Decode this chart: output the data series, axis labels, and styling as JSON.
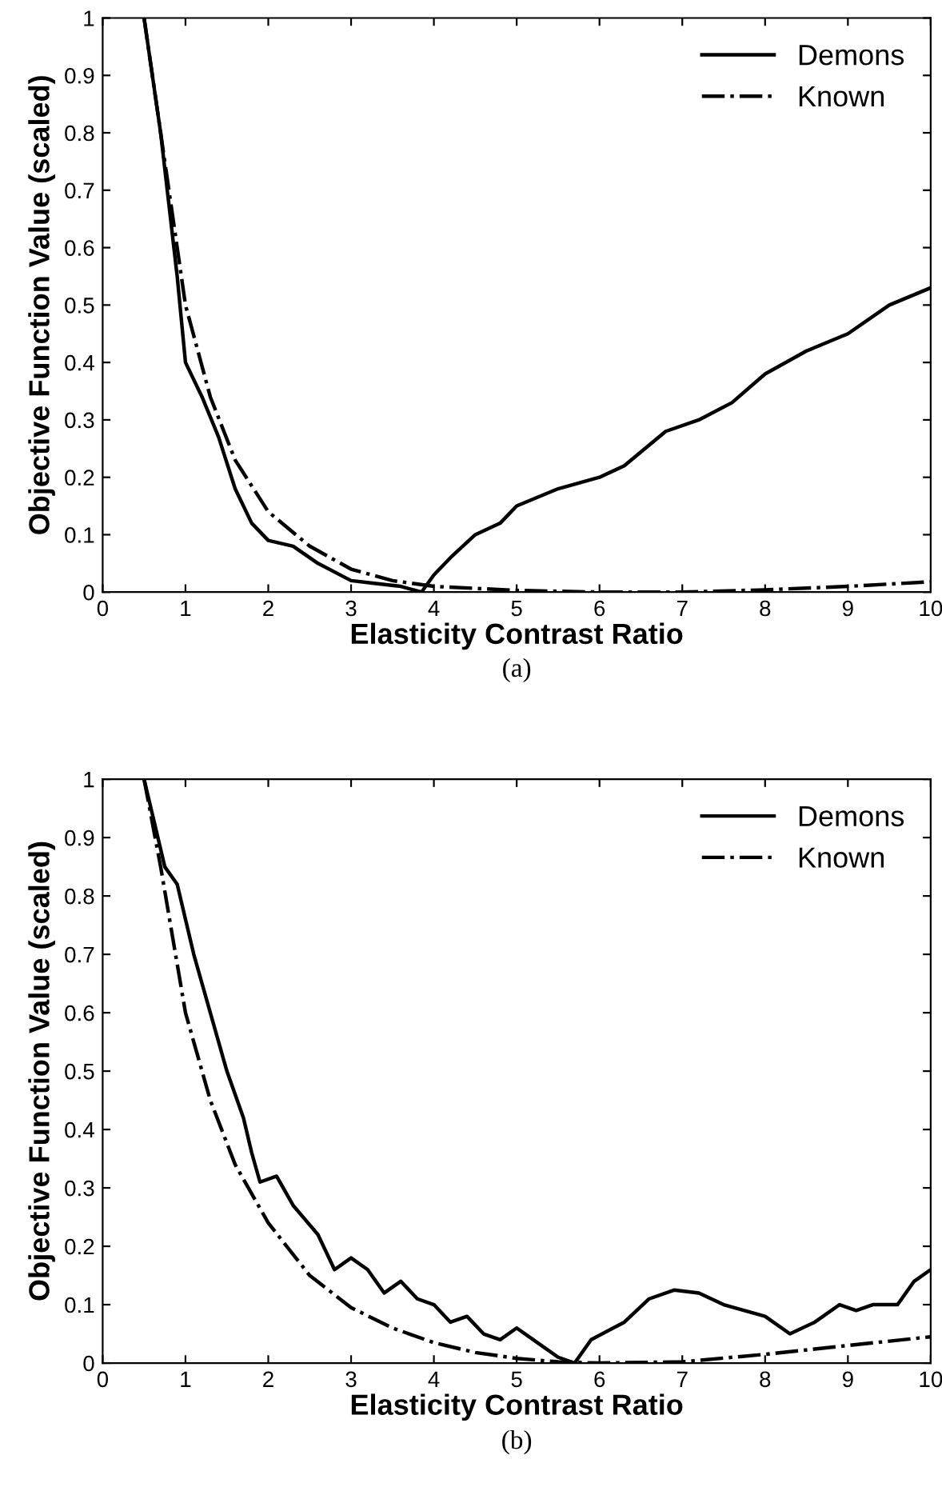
{
  "chart_data": [
    {
      "type": "line",
      "xlabel": "Elasticity Contrast Ratio",
      "ylabel": "Objective Function Value (scaled)",
      "annotations": [
        "(a)"
      ],
      "xlim": [
        0,
        10
      ],
      "ylim": [
        0,
        1
      ],
      "xticks": [
        0,
        1,
        2,
        3,
        4,
        5,
        6,
        7,
        8,
        9,
        10
      ],
      "yticks": [
        0,
        0.1,
        0.2,
        0.3,
        0.4,
        0.5,
        0.6,
        0.7,
        0.8,
        0.9,
        1
      ],
      "grid": false,
      "legend": "top right",
      "marker": "none",
      "series": [
        {
          "name": "Demons",
          "color": "#000000",
          "line_style": "solid",
          "x": [
            0.5,
            0.7,
            0.9,
            1.0,
            1.2,
            1.4,
            1.6,
            1.8,
            2.0,
            2.3,
            2.6,
            3.0,
            3.3,
            3.6,
            3.85,
            4.0,
            4.2,
            4.5,
            4.8,
            5.0,
            5.5,
            6.0,
            6.3,
            6.8,
            7.2,
            7.6,
            8.0,
            8.5,
            9.0,
            9.5,
            10
          ],
          "values": [
            1.0,
            0.8,
            0.55,
            0.4,
            0.34,
            0.27,
            0.18,
            0.12,
            0.09,
            0.08,
            0.05,
            0.02,
            0.015,
            0.01,
            0.0,
            0.03,
            0.06,
            0.1,
            0.12,
            0.15,
            0.18,
            0.2,
            0.22,
            0.28,
            0.3,
            0.33,
            0.38,
            0.42,
            0.45,
            0.5,
            0.53
          ]
        },
        {
          "name": "Known",
          "color": "#000000",
          "line_style": "dashdot",
          "x": [
            0.5,
            0.8,
            1.0,
            1.3,
            1.6,
            2.0,
            2.5,
            3.0,
            3.5,
            4.0,
            5.0,
            6.0,
            7.0,
            8.0,
            9.0,
            10
          ],
          "values": [
            1.0,
            0.7,
            0.5,
            0.34,
            0.23,
            0.14,
            0.08,
            0.04,
            0.02,
            0.01,
            0.003,
            0.0,
            0.0,
            0.004,
            0.01,
            0.018
          ]
        }
      ]
    },
    {
      "type": "line",
      "xlabel": "Elasticity Contrast Ratio",
      "ylabel": "Objective Function Value (scaled)",
      "annotations": [
        "(b)"
      ],
      "xlim": [
        0,
        10
      ],
      "ylim": [
        0,
        1
      ],
      "xticks": [
        0,
        1,
        2,
        3,
        4,
        5,
        6,
        7,
        8,
        9,
        10
      ],
      "yticks": [
        0,
        0.1,
        0.2,
        0.3,
        0.4,
        0.5,
        0.6,
        0.7,
        0.8,
        0.9,
        1
      ],
      "grid": false,
      "legend": "top right",
      "marker": "none",
      "series": [
        {
          "name": "Demons",
          "color": "#000000",
          "line_style": "solid",
          "x": [
            0.5,
            0.75,
            0.9,
            1.1,
            1.3,
            1.5,
            1.7,
            1.8,
            1.9,
            2.1,
            2.3,
            2.6,
            2.8,
            3.0,
            3.2,
            3.4,
            3.6,
            3.8,
            4.0,
            4.2,
            4.4,
            4.6,
            4.8,
            5.0,
            5.2,
            5.5,
            5.7,
            5.9,
            6.3,
            6.6,
            6.9,
            7.2,
            7.5,
            8.0,
            8.3,
            8.6,
            8.9,
            9.1,
            9.3,
            9.6,
            9.8,
            10
          ],
          "values": [
            1.0,
            0.85,
            0.82,
            0.7,
            0.6,
            0.5,
            0.42,
            0.36,
            0.31,
            0.32,
            0.27,
            0.22,
            0.16,
            0.18,
            0.16,
            0.12,
            0.14,
            0.11,
            0.1,
            0.07,
            0.08,
            0.05,
            0.04,
            0.06,
            0.04,
            0.01,
            0.0,
            0.04,
            0.07,
            0.11,
            0.125,
            0.12,
            0.1,
            0.08,
            0.05,
            0.07,
            0.1,
            0.09,
            0.1,
            0.1,
            0.14,
            0.16
          ]
        },
        {
          "name": "Known",
          "color": "#000000",
          "line_style": "dashdot",
          "x": [
            0.5,
            0.7,
            1.0,
            1.3,
            1.6,
            2.0,
            2.5,
            3.0,
            3.5,
            4.0,
            4.5,
            5.0,
            5.5,
            6.0,
            7.0,
            8.0,
            9.0,
            10
          ],
          "values": [
            1.0,
            0.85,
            0.6,
            0.45,
            0.34,
            0.24,
            0.15,
            0.095,
            0.06,
            0.035,
            0.018,
            0.008,
            0.002,
            0.0,
            0.002,
            0.015,
            0.03,
            0.045
          ]
        }
      ]
    }
  ]
}
